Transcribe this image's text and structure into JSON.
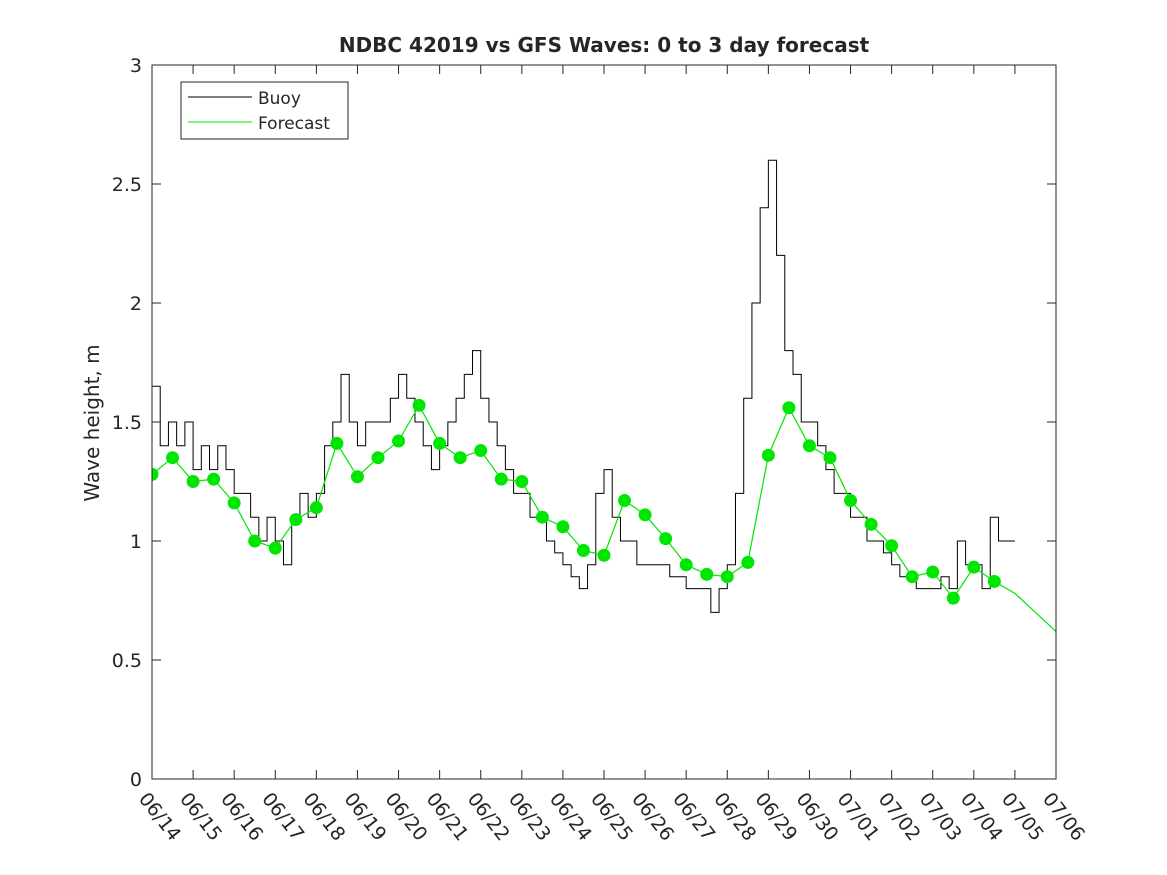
{
  "chart_data": {
    "type": "line",
    "title": "NDBC 42019 vs GFS Waves: 0 to 3 day forecast",
    "ylabel": "Wave height, m",
    "xlabel": "",
    "ylim": [
      0,
      3
    ],
    "xlim": [
      "06/14",
      "07/06"
    ],
    "y_ticks": [
      "0",
      "0.5",
      "1",
      "1.5",
      "2",
      "2.5",
      "3"
    ],
    "x_ticks": [
      "06/14",
      "06/15",
      "06/16",
      "06/17",
      "06/18",
      "06/19",
      "06/20",
      "06/21",
      "06/22",
      "06/23",
      "06/24",
      "06/25",
      "06/26",
      "06/27",
      "06/28",
      "06/29",
      "06/30",
      "07/01",
      "07/02",
      "07/03",
      "07/04",
      "07/05",
      "07/06"
    ],
    "grid": false,
    "legend": {
      "position": "top-left",
      "entries": [
        {
          "label": "Buoy",
          "color": "#000000"
        },
        {
          "label": "Forecast",
          "color": "#00e600"
        }
      ]
    },
    "colors": {
      "buoy": "#000000",
      "forecast": "#00e600",
      "marker": "#00e600"
    },
    "series": [
      {
        "name": "Buoy",
        "x_days": [
          0,
          0.2,
          0.4,
          0.6,
          0.8,
          1.0,
          1.2,
          1.4,
          1.6,
          1.8,
          2.0,
          2.2,
          2.4,
          2.6,
          2.8,
          3.0,
          3.2,
          3.4,
          3.6,
          3.8,
          4.0,
          4.2,
          4.4,
          4.6,
          4.8,
          5.0,
          5.2,
          5.4,
          5.6,
          5.8,
          6.0,
          6.2,
          6.4,
          6.6,
          6.8,
          7.0,
          7.2,
          7.4,
          7.6,
          7.8,
          8.0,
          8.2,
          8.4,
          8.6,
          8.8,
          9.0,
          9.2,
          9.4,
          9.6,
          9.8,
          10.0,
          10.2,
          10.4,
          10.6,
          10.8,
          11.0,
          11.2,
          11.4,
          11.6,
          11.8,
          12.0,
          12.2,
          12.4,
          12.6,
          12.8,
          13.0,
          13.2,
          13.4,
          13.6,
          13.8,
          14.0,
          14.2,
          14.4,
          14.6,
          14.8,
          15.0,
          15.2,
          15.4,
          15.6,
          15.8,
          16.0,
          16.2,
          16.4,
          16.6,
          16.8,
          17.0,
          17.2,
          17.4,
          17.6,
          17.8,
          18.0,
          18.2,
          18.4,
          18.6,
          18.8,
          19.0,
          19.2,
          19.4,
          19.6,
          19.8,
          20.0,
          20.2,
          20.4,
          20.6,
          20.8,
          21.0
        ],
        "values": [
          1.65,
          1.4,
          1.5,
          1.4,
          1.5,
          1.3,
          1.4,
          1.3,
          1.4,
          1.3,
          1.2,
          1.2,
          1.1,
          1.0,
          1.1,
          1.0,
          0.9,
          1.1,
          1.2,
          1.1,
          1.2,
          1.4,
          1.5,
          1.7,
          1.5,
          1.4,
          1.5,
          1.5,
          1.5,
          1.6,
          1.7,
          1.6,
          1.5,
          1.4,
          1.3,
          1.4,
          1.5,
          1.6,
          1.7,
          1.8,
          1.6,
          1.5,
          1.4,
          1.3,
          1.2,
          1.2,
          1.1,
          1.1,
          1.0,
          0.95,
          0.9,
          0.85,
          0.8,
          0.9,
          1.2,
          1.3,
          1.1,
          1.0,
          1.0,
          0.9,
          0.9,
          0.9,
          0.9,
          0.85,
          0.85,
          0.8,
          0.8,
          0.8,
          0.7,
          0.8,
          0.9,
          1.2,
          1.6,
          2.0,
          2.4,
          2.6,
          2.2,
          1.8,
          1.7,
          1.5,
          1.5,
          1.4,
          1.3,
          1.2,
          1.2,
          1.1,
          1.1,
          1.0,
          1.0,
          0.95,
          0.9,
          0.85,
          0.85,
          0.8,
          0.8,
          0.8,
          0.85,
          0.8,
          1.0,
          0.9,
          0.9,
          0.8,
          1.1,
          1.0,
          1.0,
          1.0
        ]
      },
      {
        "name": "Forecast",
        "x_days": [
          0,
          0.5,
          1.0,
          1.5,
          2.0,
          2.5,
          3.0,
          3.5,
          4.0,
          4.5,
          5.0,
          5.5,
          6.0,
          6.5,
          7.0,
          7.5,
          8.0,
          8.5,
          9.0,
          9.5,
          10.0,
          10.5,
          11.0,
          11.5,
          12.0,
          12.5,
          13.0,
          13.5,
          14.0,
          14.5,
          15.0,
          15.5,
          16.0,
          16.5,
          17.0,
          17.5,
          18.0,
          18.5,
          19.0,
          19.5,
          20.0,
          20.5,
          21.0,
          21.5,
          22.0
        ],
        "values": [
          1.28,
          1.35,
          1.25,
          1.26,
          1.16,
          1.0,
          0.97,
          1.09,
          1.14,
          1.41,
          1.27,
          1.35,
          1.42,
          1.57,
          1.41,
          1.35,
          1.38,
          1.26,
          1.25,
          1.1,
          1.06,
          0.96,
          0.94,
          1.17,
          1.11,
          1.01,
          0.9,
          0.86,
          0.85,
          0.91,
          1.36,
          1.56,
          1.4,
          1.35,
          1.17,
          1.07,
          0.98,
          0.85,
          0.87,
          0.76,
          0.89,
          0.83,
          0.78,
          0.7,
          0.62
        ]
      }
    ],
    "forecast_markers": {
      "x_days": [
        0,
        0.5,
        1.0,
        1.5,
        2.0,
        2.5,
        3.0,
        3.5,
        4.0,
        4.5,
        5.0,
        5.5,
        6.0,
        6.5,
        7.0,
        7.5,
        8.0,
        8.5,
        9.0,
        9.5,
        10.0,
        10.5,
        11.0,
        11.5,
        12.0,
        12.5,
        13.0,
        13.5,
        14.0,
        14.5,
        15.0,
        15.5,
        16.0,
        16.5,
        17.0,
        17.5,
        18.0,
        18.5,
        19.0,
        19.5,
        20.0,
        20.5
      ],
      "values": [
        1.28,
        1.35,
        1.25,
        1.26,
        1.16,
        1.0,
        0.97,
        1.09,
        1.14,
        1.41,
        1.27,
        1.35,
        1.42,
        1.57,
        1.41,
        1.35,
        1.38,
        1.26,
        1.25,
        1.1,
        1.06,
        0.96,
        0.94,
        1.17,
        1.11,
        1.01,
        0.9,
        0.86,
        0.85,
        0.91,
        1.36,
        1.56,
        1.4,
        1.35,
        1.17,
        1.07,
        0.98,
        0.85,
        0.87,
        0.76,
        0.89,
        0.83
      ]
    }
  }
}
